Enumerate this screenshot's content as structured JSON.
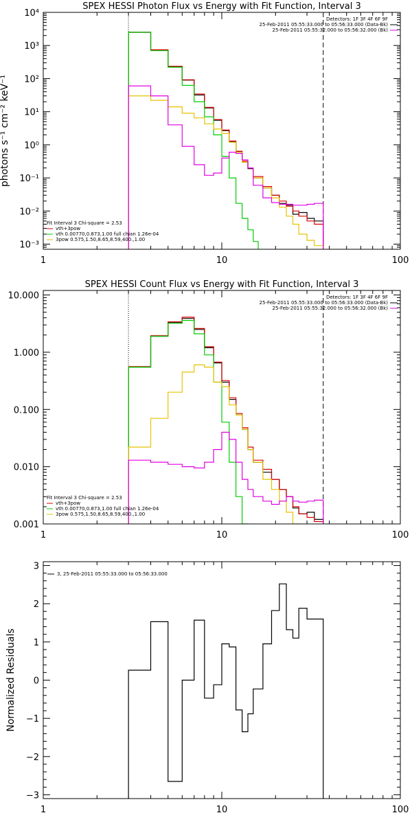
{
  "chart_data": [
    {
      "type": "line",
      "title": "SPEX HESSI Photon Flux vs Energy with Fit Function, Interval 3",
      "ylabel": "photons s⁻¹ cm⁻² keV⁻¹",
      "xlabel": "",
      "xscale": "log",
      "yscale": "log",
      "xlim": [
        1,
        100
      ],
      "ylim": [
        0.0007,
        10000
      ],
      "x_ticks": [
        1,
        10,
        100
      ],
      "x_tick_labels": [
        "1",
        "10",
        "100"
      ],
      "y_ticks": [
        0.001,
        0.01,
        0.1,
        1,
        10,
        100,
        1000,
        10000
      ],
      "y_tick_labels": [
        "10⁻³",
        "10⁻²",
        "10⁻¹",
        "10⁰",
        "10¹",
        "10²",
        "10³",
        "10⁴"
      ],
      "vlines": [
        {
          "x": 3,
          "style": "dotted"
        },
        {
          "x": 37,
          "style": "dashed"
        }
      ],
      "legend_top": [
        "Detectors: 1F 3F 4F 6F 9F",
        "25-Feb-2011 05:55:33.000 to 05:56:33.000 (Data-Bk)",
        "25-Feb-2011 05:55:32.000 to 05:56:32.000 (Bk)"
      ],
      "legend_bottom": [
        "Fit Interval 3   Chi-square = 2.53",
        "vth+3pow",
        "vth 0.00770,0.873,1.00  full chian 1.26e-04",
        "3pow 0.575,1.50,8.65,8.59,400.,1.00"
      ],
      "series": [
        {
          "color": "#000000",
          "edges": [
            3,
            4,
            5,
            6,
            7,
            8,
            9,
            10,
            11,
            12,
            13,
            14,
            15,
            17,
            19,
            21,
            23,
            25,
            27,
            30,
            33,
            37
          ],
          "values": [
            2500,
            720,
            230,
            90,
            32,
            13,
            5.5,
            2.7,
            1.25,
            0.62,
            0.3,
            0.19,
            0.1,
            0.05,
            0.03,
            0.017,
            0.015,
            0.008,
            0.009,
            0.006,
            0.005
          ]
        },
        {
          "color": "#d80000",
          "edges": [
            3,
            4,
            5,
            6,
            7,
            8,
            9,
            10,
            11,
            12,
            13,
            14,
            15,
            17,
            19,
            21,
            23,
            25,
            27,
            30,
            33,
            37
          ],
          "values": [
            2500,
            740,
            235,
            92,
            34,
            13.5,
            5.8,
            2.8,
            1.3,
            0.64,
            0.32,
            0.2,
            0.11,
            0.055,
            0.03,
            0.02,
            0.014,
            0.01,
            0.007,
            0.005,
            0.004
          ]
        },
        {
          "color": "#00cc00",
          "edges": [
            3,
            4,
            5,
            6,
            7,
            8,
            9,
            10,
            11,
            12,
            13,
            14,
            15,
            16
          ],
          "values": [
            2500,
            700,
            220,
            62,
            20,
            7,
            2,
            0.45,
            0.1,
            0.017,
            0.006,
            0.0027,
            0.0012
          ]
        },
        {
          "color": "#e6c200",
          "edges": [
            3,
            4,
            5,
            6,
            7,
            8,
            9,
            10,
            11,
            12,
            13,
            14,
            15,
            17,
            19,
            21,
            23,
            25,
            27,
            30,
            33,
            37
          ],
          "values": [
            30,
            22,
            14,
            9,
            6.5,
            4.3,
            3,
            2.2,
            1.2,
            0.6,
            0.3,
            0.2,
            0.1,
            0.05,
            0.025,
            0.013,
            0.007,
            0.004,
            0.002,
            0.0013,
            0.0009
          ]
        },
        {
          "color": "#e000e0",
          "edges": [
            3,
            4,
            5,
            6,
            7,
            8,
            9,
            10,
            11,
            12,
            13,
            14,
            15,
            17,
            19,
            21,
            23,
            25,
            27,
            30,
            33,
            37
          ],
          "values": [
            60,
            30,
            4,
            0.9,
            0.25,
            0.12,
            0.14,
            0.4,
            0.6,
            0.55,
            0.35,
            0.2,
            0.06,
            0.025,
            0.018,
            0.016,
            0.016,
            0.015,
            0.015,
            0.016,
            0.017
          ]
        }
      ]
    },
    {
      "type": "line",
      "title": "SPEX HESSI Count Flux vs Energy with Fit Function, Interval 3",
      "ylabel": "",
      "xlabel": "",
      "xscale": "log",
      "yscale": "log",
      "xlim": [
        1,
        100
      ],
      "ylim": [
        0.001,
        12
      ],
      "x_ticks": [
        1,
        10,
        100
      ],
      "x_tick_labels": [
        "1",
        "10",
        "100"
      ],
      "y_ticks": [
        0.001,
        0.01,
        0.1,
        1,
        10
      ],
      "y_tick_labels": [
        "0.001",
        "0.010",
        "0.100",
        "1.000",
        "10.000"
      ],
      "vlines": [
        {
          "x": 3,
          "style": "dotted"
        },
        {
          "x": 37,
          "style": "dashed"
        }
      ],
      "legend_top": [
        "Detectors: 1F 3F 4F 6F 9F",
        "25-Feb-2011 05:55:33.000 to 05:56:33.000 (Data-Bk)",
        "25-Feb-2011 05:55:32.000 to 05:56:32.000 (Bk)"
      ],
      "legend_bottom": [
        "Fit Interval 3   Chi-square = 2.53",
        "vth+3pow",
        "vth 0.00770,0.873,1.00  full chian 1.26e-04",
        "3pow 0.575,1.50,8.65,8.59,400.,1.00"
      ],
      "series": [
        {
          "color": "#000000",
          "edges": [
            3,
            4,
            5,
            6,
            7,
            8,
            9,
            10,
            11,
            12,
            13,
            14,
            15,
            17,
            19,
            21,
            23,
            25,
            27,
            30,
            33,
            37
          ],
          "values": [
            0.55,
            1.9,
            3.3,
            3.9,
            2.5,
            1.2,
            0.65,
            0.3,
            0.15,
            0.08,
            0.045,
            0.02,
            0.012,
            0.008,
            0.006,
            0.004,
            0.003,
            0.0019,
            0.0015,
            0.0016,
            0.0012
          ]
        },
        {
          "color": "#d80000",
          "edges": [
            3,
            4,
            5,
            6,
            7,
            8,
            9,
            10,
            11,
            12,
            13,
            14,
            15,
            17,
            19,
            21,
            23,
            25,
            27,
            30,
            33,
            37
          ],
          "values": [
            0.56,
            1.95,
            3.4,
            4.1,
            2.6,
            1.25,
            0.67,
            0.32,
            0.16,
            0.085,
            0.048,
            0.022,
            0.013,
            0.009,
            0.006,
            0.004,
            0.003,
            0.002,
            0.0015,
            0.0013,
            0.0011
          ]
        },
        {
          "color": "#00cc00",
          "edges": [
            3,
            4,
            5,
            6,
            7,
            8,
            9,
            10,
            11,
            12,
            13,
            14
          ],
          "values": [
            0.55,
            1.9,
            3.2,
            3.6,
            2.1,
            0.9,
            0.3,
            0.06,
            0.012,
            0.003,
            0.001
          ]
        },
        {
          "color": "#e6c200",
          "edges": [
            3,
            4,
            5,
            6,
            7,
            8,
            9,
            10,
            11,
            12,
            13,
            14,
            15,
            17,
            19,
            21,
            23,
            25,
            27
          ],
          "values": [
            0.022,
            0.07,
            0.2,
            0.45,
            0.6,
            0.55,
            0.3,
            0.25,
            0.12,
            0.08,
            0.045,
            0.02,
            0.012,
            0.006,
            0.004,
            0.0025,
            0.0016,
            0.001
          ]
        },
        {
          "color": "#e000e0",
          "edges": [
            3,
            4,
            5,
            6,
            7,
            8,
            9,
            10,
            11,
            12,
            13,
            14,
            15,
            17,
            19,
            21,
            23,
            25,
            27,
            30,
            33,
            37
          ],
          "values": [
            0.013,
            0.012,
            0.011,
            0.01,
            0.0095,
            0.012,
            0.02,
            0.04,
            0.03,
            0.012,
            0.006,
            0.004,
            0.003,
            0.0025,
            0.0022,
            0.0025,
            0.003,
            0.0025,
            0.0024,
            0.0025,
            0.0026
          ]
        }
      ]
    },
    {
      "type": "line",
      "title": "",
      "ylabel": "Normalized Residuals",
      "xlabel": "",
      "xscale": "log",
      "yscale": "linear",
      "xlim": [
        1,
        100
      ],
      "ylim": [
        -3.1,
        3.1
      ],
      "x_ticks": [
        1,
        10,
        100
      ],
      "x_tick_labels": [
        "1",
        "10",
        "100"
      ],
      "y_ticks": [
        -3,
        -2,
        -1,
        0,
        1,
        2,
        3
      ],
      "y_tick_labels": [
        "−3",
        "−2",
        "−1",
        "0",
        "1",
        "2",
        "3"
      ],
      "legend": "3, 25-Feb-2011 05:55:33.000 to 05:56:33.000",
      "series": [
        {
          "color": "#000000",
          "edges": [
            3,
            4,
            5,
            6,
            7,
            8,
            9,
            10,
            11,
            12,
            13,
            14,
            15,
            17,
            19,
            21,
            23,
            25,
            27,
            30,
            33,
            37
          ],
          "values": [
            0.26,
            1.53,
            -2.65,
            0,
            1.57,
            -0.47,
            -0.12,
            0.95,
            0.87,
            -0.78,
            -1.35,
            -0.88,
            -0.23,
            0.95,
            1.82,
            2.52,
            1.32,
            1.1,
            1.88,
            1.6,
            1.6
          ]
        }
      ]
    }
  ]
}
